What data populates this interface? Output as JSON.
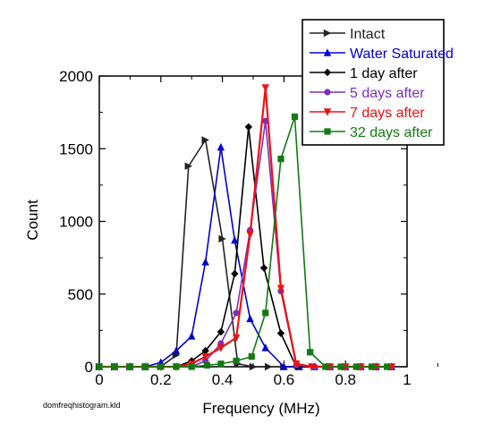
{
  "chart_data": {
    "type": "line",
    "title": "",
    "xlabel": "Frequency (MHz)",
    "ylabel": "Count",
    "xlim": [
      0,
      1
    ],
    "ylim": [
      0,
      2000
    ],
    "xticks": [
      "0",
      "0.2",
      "0.4",
      "0.6",
      "0.8",
      "1"
    ],
    "yticks": [
      "0",
      "500",
      "1000",
      "1500",
      "2000"
    ],
    "grid": false,
    "legend_position": "top-right",
    "series": [
      {
        "name": "Intact",
        "color": "#222222",
        "marker": "right-triangle",
        "points": [
          [
            0,
            0
          ],
          [
            0.05,
            0
          ],
          [
            0.1,
            0
          ],
          [
            0.15,
            0
          ],
          [
            0.2,
            0
          ],
          [
            0.25,
            80
          ],
          [
            0.29,
            1380
          ],
          [
            0.345,
            1560
          ],
          [
            0.4,
            880
          ],
          [
            0.45,
            20
          ],
          [
            0.5,
            0
          ],
          [
            0.55,
            0
          ],
          [
            0.6,
            0
          ],
          [
            0.65,
            0
          ],
          [
            0.7,
            0
          ],
          [
            0.75,
            0
          ],
          [
            0.8,
            0
          ],
          [
            0.85,
            0
          ],
          [
            0.9,
            0
          ],
          [
            0.95,
            0
          ]
        ]
      },
      {
        "name": "Water Saturated",
        "color": "#0000cc",
        "marker": "triangle-up",
        "points": [
          [
            0,
            0
          ],
          [
            0.05,
            0
          ],
          [
            0.1,
            0
          ],
          [
            0.15,
            0
          ],
          [
            0.2,
            30
          ],
          [
            0.25,
            110
          ],
          [
            0.3,
            210
          ],
          [
            0.345,
            720
          ],
          [
            0.395,
            1510
          ],
          [
            0.44,
            870
          ],
          [
            0.49,
            330
          ],
          [
            0.54,
            130
          ],
          [
            0.6,
            0
          ],
          [
            0.65,
            0
          ],
          [
            0.7,
            0
          ],
          [
            0.75,
            0
          ],
          [
            0.8,
            0
          ],
          [
            0.85,
            0
          ],
          [
            0.9,
            0
          ],
          [
            0.95,
            0
          ]
        ]
      },
      {
        "name": "1 day after",
        "color": "#000000",
        "marker": "diamond",
        "points": [
          [
            0,
            0
          ],
          [
            0.05,
            0
          ],
          [
            0.1,
            0
          ],
          [
            0.15,
            0
          ],
          [
            0.2,
            0
          ],
          [
            0.25,
            0
          ],
          [
            0.3,
            40
          ],
          [
            0.345,
            110
          ],
          [
            0.395,
            240
          ],
          [
            0.44,
            640
          ],
          [
            0.485,
            1650
          ],
          [
            0.535,
            680
          ],
          [
            0.59,
            230
          ],
          [
            0.64,
            0
          ],
          [
            0.7,
            0
          ],
          [
            0.75,
            0
          ],
          [
            0.8,
            0
          ],
          [
            0.85,
            0
          ],
          [
            0.9,
            0
          ],
          [
            0.95,
            0
          ]
        ]
      },
      {
        "name": "5 days after",
        "color": "#7b2fbe",
        "marker": "circle",
        "points": [
          [
            0,
            0
          ],
          [
            0.05,
            0
          ],
          [
            0.1,
            0
          ],
          [
            0.15,
            0
          ],
          [
            0.2,
            0
          ],
          [
            0.25,
            0
          ],
          [
            0.3,
            0
          ],
          [
            0.345,
            40
          ],
          [
            0.395,
            160
          ],
          [
            0.445,
            370
          ],
          [
            0.49,
            940
          ],
          [
            0.54,
            1690
          ],
          [
            0.59,
            520
          ],
          [
            0.64,
            10
          ],
          [
            0.7,
            0
          ],
          [
            0.75,
            0
          ],
          [
            0.8,
            0
          ],
          [
            0.85,
            0
          ],
          [
            0.9,
            0
          ],
          [
            0.95,
            0
          ]
        ]
      },
      {
        "name": "7 days after",
        "color": "#ee1111",
        "marker": "triangle-down",
        "points": [
          [
            0,
            0
          ],
          [
            0.05,
            0
          ],
          [
            0.1,
            0
          ],
          [
            0.15,
            0
          ],
          [
            0.2,
            0
          ],
          [
            0.25,
            0
          ],
          [
            0.3,
            20
          ],
          [
            0.345,
            70
          ],
          [
            0.395,
            130
          ],
          [
            0.445,
            200
          ],
          [
            0.49,
            910
          ],
          [
            0.54,
            1920
          ],
          [
            0.59,
            540
          ],
          [
            0.64,
            20
          ],
          [
            0.69,
            0
          ],
          [
            0.75,
            0
          ],
          [
            0.8,
            0
          ],
          [
            0.85,
            0
          ],
          [
            0.9,
            0
          ],
          [
            0.95,
            0
          ]
        ]
      },
      {
        "name": "32 days after",
        "color": "#127a12",
        "marker": "square",
        "points": [
          [
            0,
            0
          ],
          [
            0.05,
            0
          ],
          [
            0.1,
            0
          ],
          [
            0.15,
            0
          ],
          [
            0.2,
            0
          ],
          [
            0.25,
            0
          ],
          [
            0.3,
            0
          ],
          [
            0.35,
            10
          ],
          [
            0.395,
            20
          ],
          [
            0.445,
            40
          ],
          [
            0.495,
            70
          ],
          [
            0.54,
            370
          ],
          [
            0.59,
            1430
          ],
          [
            0.635,
            1720
          ],
          [
            0.685,
            100
          ],
          [
            0.735,
            0
          ],
          [
            0.785,
            0
          ],
          [
            0.835,
            0
          ],
          [
            0.885,
            0
          ],
          [
            0.935,
            0
          ]
        ]
      }
    ]
  },
  "footer": {
    "filename": "domfreqhistogram.kld"
  }
}
